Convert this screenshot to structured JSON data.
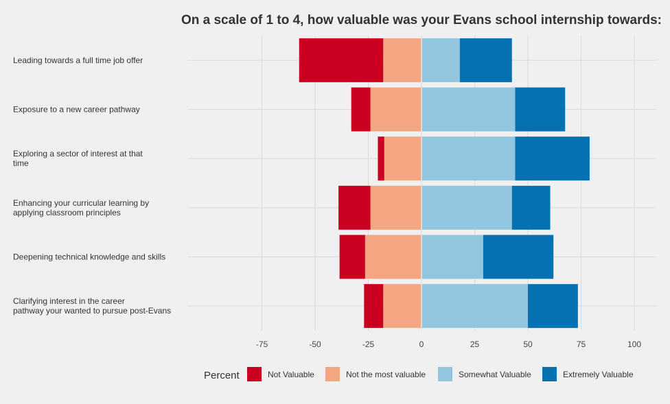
{
  "chart_data": {
    "type": "bar",
    "orientation": "horizontal",
    "stacking": "diverging",
    "title": "On a scale of 1 to 4, how valuable was your Evans school internship towards:",
    "xlabel": "",
    "ylabel": "",
    "xlim": [
      -110,
      115
    ],
    "x_ticks": [
      -75,
      -50,
      -25,
      0,
      25,
      50,
      75,
      100
    ],
    "x_tick_labels": [
      "-75",
      "-50",
      "-25",
      "0",
      "25",
      "50",
      "75",
      "100"
    ],
    "grid": true,
    "legend_position": "bottom",
    "legend_title": "Percent",
    "categories": [
      "Leading towards a full time job offer",
      "Exposure to a new career pathway",
      "Exploring a sector of interest at that time",
      "Enhancing your curricular learning by applying classroom principles",
      "Deepening technical knowledge and skills",
      "Clarifying interest in the career pathway your wanted to pursue post-Evans"
    ],
    "category_lines": [
      [
        "Leading towards a full time job offer"
      ],
      [
        "Exposure to a new career pathway"
      ],
      [
        "Exploring a sector of interest at that",
        "time"
      ],
      [
        "Enhancing your curricular learning by",
        "applying classroom principles"
      ],
      [
        "Deepening technical knowledge and skills"
      ],
      [
        "Clarifying interest in the career",
        "pathway your wanted to pursue post-Evans"
      ]
    ],
    "series": [
      {
        "name": "Not Valuable",
        "color": "#ca0020",
        "side": "negative",
        "values": [
          39.5,
          9,
          3,
          15,
          12,
          9
        ]
      },
      {
        "name": "Not the most valuable",
        "color": "#f4a582",
        "side": "negative",
        "values": [
          18,
          24,
          17.5,
          24,
          26.5,
          18
        ]
      },
      {
        "name": "Somewhat Valuable",
        "color": "#92c5de",
        "side": "positive",
        "values": [
          18,
          44,
          44,
          42.5,
          29,
          50
        ]
      },
      {
        "name": "Extremely Valuable",
        "color": "#0571b0",
        "side": "positive",
        "values": [
          24.5,
          23.5,
          35,
          18,
          33,
          23.5
        ]
      }
    ]
  }
}
